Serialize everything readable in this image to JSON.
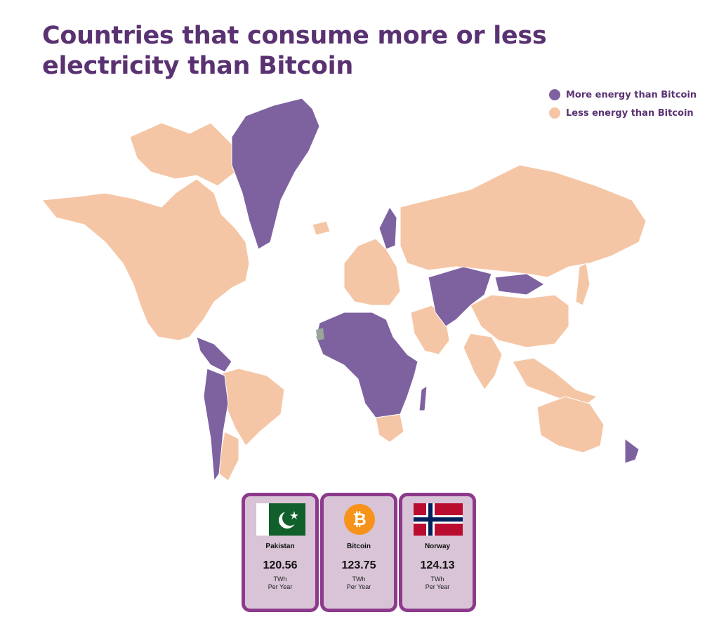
{
  "title": "Countries that consume more or less electricity than Bitcoin",
  "legend": {
    "more": {
      "label": "More energy than Bitcoin",
      "color": "#7e62a0"
    },
    "less": {
      "label": "Less energy than Bitcoin",
      "color": "#f5c6a5"
    }
  },
  "map": {
    "more_energy_regions": [
      "greenland",
      "scandinavia",
      "central-asia",
      "mongolia",
      "africa",
      "central-america",
      "south-america",
      "new-zealand"
    ],
    "less_energy_regions": [
      "north-america",
      "europe",
      "russia",
      "china",
      "india",
      "southeast-asia",
      "australia",
      "brazil",
      "argentina"
    ]
  },
  "cards": [
    {
      "name": "Pakistan",
      "value": "120.56",
      "unit": "TWh",
      "per": "Per Year",
      "icon": "pakistan-flag-icon"
    },
    {
      "name": "Bitcoin",
      "value": "123.75",
      "unit": "TWh",
      "per": "Per Year",
      "icon": "bitcoin-icon"
    },
    {
      "name": "Norway",
      "value": "124.13",
      "unit": "TWh",
      "per": "Per Year",
      "icon": "norway-flag-icon"
    }
  ]
}
